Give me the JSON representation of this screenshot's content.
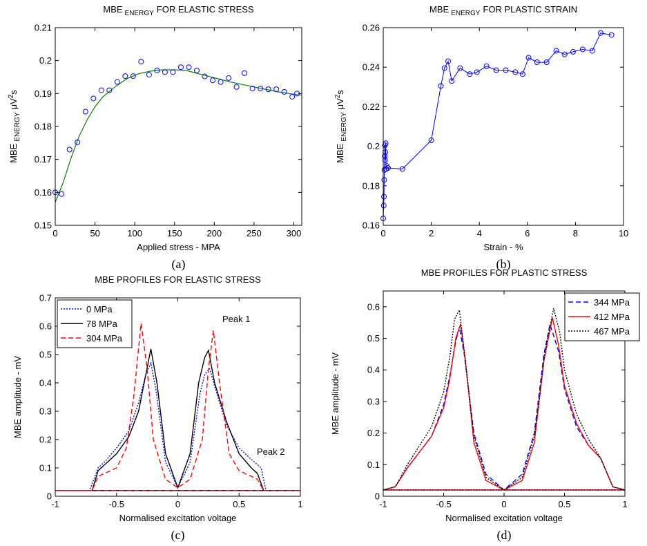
{
  "chart_data": [
    {
      "type": "scatter",
      "panel": "(a)",
      "title": {
        "main": "MBE",
        "sub": "ENERGY",
        "rest": "FOR ELASTIC STRESS"
      },
      "xlabel": "Applied stress - MPA",
      "ylabel": {
        "main": "MBE",
        "sub": "ENERGY",
        "unit": "μV",
        "sup": "2",
        "end": "s"
      },
      "xlim": [
        0,
        310
      ],
      "ylim": [
        0.15,
        0.21
      ],
      "xticks": [
        0,
        50,
        100,
        150,
        200,
        250,
        300
      ],
      "yticks": [
        0.15,
        0.16,
        0.17,
        0.18,
        0.19,
        0.2,
        0.21
      ],
      "color": "#0000ff",
      "x": [
        0,
        8,
        18,
        28,
        38,
        48,
        58,
        68,
        78,
        88,
        98,
        108,
        118,
        128,
        138,
        148,
        158,
        168,
        178,
        188,
        198,
        208,
        218,
        228,
        238,
        248,
        258,
        268,
        278,
        288,
        298,
        304
      ],
      "values": [
        0.16,
        0.1595,
        0.173,
        0.1752,
        0.1845,
        0.1885,
        0.191,
        0.191,
        0.1935,
        0.1953,
        0.1953,
        0.1997,
        0.1957,
        0.197,
        0.1965,
        0.1965,
        0.198,
        0.198,
        0.197,
        0.1952,
        0.194,
        0.1935,
        0.1947,
        0.192,
        0.1962,
        0.1915,
        0.1915,
        0.1913,
        0.1913,
        0.1905,
        0.189,
        0.19
      ],
      "fit": {
        "color": "#008000",
        "x": [
          0,
          10,
          20,
          30,
          40,
          50,
          60,
          75,
          90,
          105,
          120,
          135,
          150,
          165,
          180,
          200,
          220,
          240,
          260,
          280,
          300,
          310
        ],
        "values": [
          0.157,
          0.163,
          0.1705,
          0.177,
          0.182,
          0.186,
          0.189,
          0.192,
          0.1945,
          0.196,
          0.1968,
          0.1972,
          0.1972,
          0.197,
          0.196,
          0.1948,
          0.1935,
          0.1925,
          0.1915,
          0.1905,
          0.1898,
          0.1895
        ]
      }
    },
    {
      "type": "line",
      "panel": "(b)",
      "title": {
        "main": "MBE",
        "sub": "ENERGY",
        "rest": "FOR PLASTIC STRAIN"
      },
      "xlabel": "Strain - %",
      "ylabel": {
        "main": "MBE",
        "sub": "ENERGY",
        "unit": "μV",
        "sup": "2",
        "end": "s"
      },
      "xlim": [
        0,
        10
      ],
      "ylim": [
        0.16,
        0.26
      ],
      "xticks": [
        0,
        2,
        4,
        6,
        8,
        10
      ],
      "yticks": [
        0.16,
        0.18,
        0.2,
        0.22,
        0.24,
        0.26
      ],
      "color": "#0000ff",
      "x": [
        0,
        0.02,
        0.03,
        0.04,
        0.05,
        0.06,
        0.07,
        0.08,
        0.09,
        0.1,
        0.12,
        0.15,
        0.2,
        0.8,
        2,
        2.4,
        2.55,
        2.7,
        2.85,
        3.2,
        3.6,
        3.9,
        4.3,
        4.7,
        5.1,
        5.5,
        5.8,
        6.05,
        6.4,
        6.8,
        7.2,
        7.55,
        7.9,
        8.3,
        8.7,
        9.05,
        9.5
      ],
      "values": [
        0.1635,
        0.17,
        0.1745,
        0.183,
        0.188,
        0.195,
        0.2005,
        0.193,
        0.197,
        0.2015,
        0.1885,
        0.19,
        0.189,
        0.1885,
        0.203,
        0.2305,
        0.2395,
        0.243,
        0.233,
        0.2395,
        0.2365,
        0.2375,
        0.2405,
        0.2385,
        0.2385,
        0.2375,
        0.2365,
        0.2448,
        0.2425,
        0.2425,
        0.2483,
        0.2465,
        0.2478,
        0.249,
        0.2483,
        0.2573,
        0.2563
      ]
    },
    {
      "type": "line",
      "panel": "(c)",
      "title": "MBE PROFILES FOR ELASTIC STRESS",
      "xlabel": "Normalised excitation voltage",
      "ylabel": "MBE amplitude - mV",
      "xlim": [
        -1,
        1
      ],
      "ylim": [
        0,
        0.7
      ],
      "xticks": [
        -1,
        -0.5,
        0,
        0.5,
        1
      ],
      "yticks": [
        0,
        0.1,
        0.2,
        0.3,
        0.4,
        0.5,
        0.6,
        0.7
      ],
      "legend": "upper left",
      "annotations": [
        "Peak 1",
        "Peak 2"
      ],
      "series": [
        {
          "name": "0 MPa",
          "color": "#0000ff",
          "style": "dotted",
          "x": [
            -1,
            -0.72,
            -0.65,
            -0.6,
            -0.5,
            -0.4,
            -0.32,
            -0.26,
            -0.22,
            -0.18,
            -0.1,
            0,
            0.1,
            0.18,
            0.22,
            0.26,
            0.32,
            0.4,
            0.5,
            0.6,
            0.68,
            0.72,
            1,
            -1
          ],
          "values": [
            0.02,
            0.02,
            0.1,
            0.12,
            0.17,
            0.23,
            0.33,
            0.43,
            0.47,
            0.38,
            0.12,
            0.03,
            0.12,
            0.36,
            0.43,
            0.45,
            0.36,
            0.25,
            0.17,
            0.13,
            0.1,
            0.02,
            0.02,
            0.02
          ]
        },
        {
          "name": "78 MPa",
          "color": "#000000",
          "style": "solid",
          "x": [
            -1,
            -0.7,
            -0.65,
            -0.6,
            -0.5,
            -0.4,
            -0.32,
            -0.27,
            -0.22,
            -0.17,
            -0.1,
            0,
            0.1,
            0.17,
            0.22,
            0.25,
            0.3,
            0.4,
            0.5,
            0.6,
            0.65,
            0.7,
            1,
            -1
          ],
          "values": [
            0.02,
            0.02,
            0.09,
            0.11,
            0.15,
            0.21,
            0.3,
            0.41,
            0.52,
            0.4,
            0.15,
            0.03,
            0.15,
            0.4,
            0.49,
            0.515,
            0.4,
            0.26,
            0.15,
            0.1,
            0.08,
            0.02,
            0.02,
            0.02
          ]
        },
        {
          "name": "304 MPa",
          "color": "#ff0000",
          "style": "dashed",
          "x": [
            -1,
            -0.7,
            -0.65,
            -0.6,
            -0.5,
            -0.42,
            -0.36,
            -0.3,
            -0.25,
            -0.2,
            -0.1,
            0,
            0.1,
            0.2,
            0.25,
            0.29,
            0.34,
            0.42,
            0.5,
            0.6,
            0.65,
            0.7,
            1,
            -1
          ],
          "values": [
            0.02,
            0.02,
            0.07,
            0.08,
            0.1,
            0.17,
            0.35,
            0.61,
            0.45,
            0.2,
            0.06,
            0.03,
            0.06,
            0.2,
            0.45,
            0.585,
            0.4,
            0.15,
            0.09,
            0.07,
            0.06,
            0.02,
            0.02,
            0.02
          ]
        }
      ]
    },
    {
      "type": "line",
      "panel": "(d)",
      "title": "MBE PROFILES FOR PLASTIC STRESS",
      "xlabel": "Normalised excitation voltage",
      "ylabel": "MBE amplitude - mV",
      "xlim": [
        -1,
        1
      ],
      "ylim": [
        0,
        0.65
      ],
      "xticks": [
        -1,
        -0.5,
        0,
        0.5,
        1
      ],
      "yticks": [
        0,
        0.1,
        0.2,
        0.3,
        0.4,
        0.5,
        0.6
      ],
      "legend": "upper right",
      "series": [
        {
          "name": "344 MPa",
          "color": "#0000ff",
          "style": "dashed",
          "x": [
            -1,
            -0.9,
            -0.8,
            -0.7,
            -0.6,
            -0.5,
            -0.45,
            -0.4,
            -0.37,
            -0.33,
            -0.25,
            -0.15,
            0,
            0.15,
            0.25,
            0.33,
            0.38,
            0.45,
            0.5,
            0.6,
            0.7,
            0.8,
            0.9,
            1,
            -1
          ],
          "values": [
            0.02,
            0.03,
            0.09,
            0.14,
            0.19,
            0.29,
            0.38,
            0.49,
            0.535,
            0.45,
            0.2,
            0.07,
            0.02,
            0.07,
            0.2,
            0.45,
            0.545,
            0.46,
            0.34,
            0.22,
            0.16,
            0.12,
            0.03,
            0.02,
            0.02
          ]
        },
        {
          "name": "412 MPa",
          "color": "#ff0000",
          "style": "solid",
          "x": [
            -1,
            -0.9,
            -0.8,
            -0.7,
            -0.6,
            -0.5,
            -0.45,
            -0.4,
            -0.36,
            -0.32,
            -0.25,
            -0.15,
            0,
            0.15,
            0.25,
            0.33,
            0.4,
            0.45,
            0.5,
            0.6,
            0.7,
            0.8,
            0.9,
            1,
            -1
          ],
          "values": [
            0.02,
            0.03,
            0.09,
            0.14,
            0.19,
            0.28,
            0.37,
            0.5,
            0.545,
            0.43,
            0.17,
            0.05,
            0.02,
            0.05,
            0.17,
            0.43,
            0.565,
            0.48,
            0.35,
            0.23,
            0.16,
            0.12,
            0.03,
            0.02,
            0.02
          ]
        },
        {
          "name": "467 MPa",
          "color": "#000000",
          "style": "dotted",
          "x": [
            -1,
            -0.9,
            -0.8,
            -0.7,
            -0.6,
            -0.5,
            -0.45,
            -0.41,
            -0.37,
            -0.33,
            -0.25,
            -0.15,
            0,
            0.15,
            0.25,
            0.34,
            0.41,
            0.46,
            0.5,
            0.6,
            0.7,
            0.8,
            0.9,
            1,
            -1
          ],
          "values": [
            0.02,
            0.03,
            0.1,
            0.16,
            0.22,
            0.33,
            0.44,
            0.56,
            0.59,
            0.46,
            0.19,
            0.06,
            0.02,
            0.06,
            0.19,
            0.46,
            0.595,
            0.52,
            0.4,
            0.26,
            0.18,
            0.12,
            0.03,
            0.02,
            0.02
          ]
        }
      ]
    }
  ]
}
